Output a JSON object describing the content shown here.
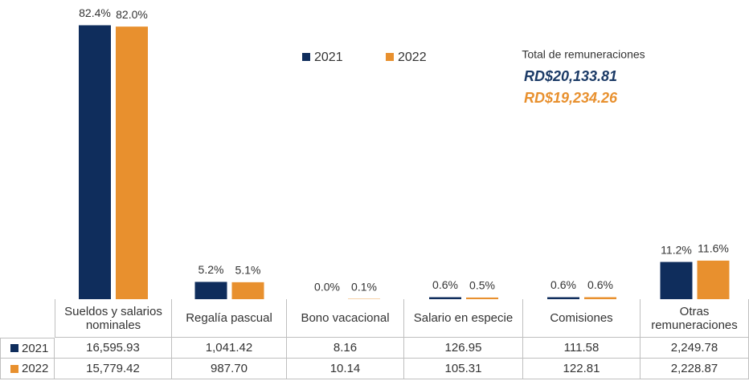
{
  "chart_data": {
    "type": "bar",
    "categories": [
      "Sueldos y salarios nominales",
      "Regalía pascual",
      "Bono vacacional",
      "Salario en especie",
      "Comisiones",
      "Otras remuneraciones"
    ],
    "series": [
      {
        "name": "2021",
        "color": "#0f2d5c",
        "values": [
          82.4,
          5.2,
          0.0,
          0.6,
          0.6,
          11.2
        ],
        "value_labels": [
          "82.4%",
          "5.2%",
          "0.0%",
          "0.6%",
          "0.6%",
          "11.2%"
        ]
      },
      {
        "name": "2022",
        "color": "#e8902e",
        "values": [
          82.0,
          5.1,
          0.1,
          0.5,
          0.6,
          11.6
        ],
        "value_labels": [
          "82.0%",
          "5.1%",
          "0.1%",
          "0.5%",
          "0.6%",
          "11.6%"
        ]
      }
    ],
    "ylim": [
      0,
      90
    ],
    "annotations": {
      "heading": "Total de remuneraciones",
      "total_2021": "RD$20,133.81",
      "total_2022": "RD$19,234.26"
    },
    "table": {
      "rows": [
        [
          "16,595.93",
          "1,041.42",
          "8.16",
          "126.95",
          "111.58",
          "2,249.78"
        ],
        [
          "15,779.42",
          "987.70",
          "10.14",
          "105.31",
          "122.81",
          "2,228.87"
        ]
      ]
    }
  }
}
